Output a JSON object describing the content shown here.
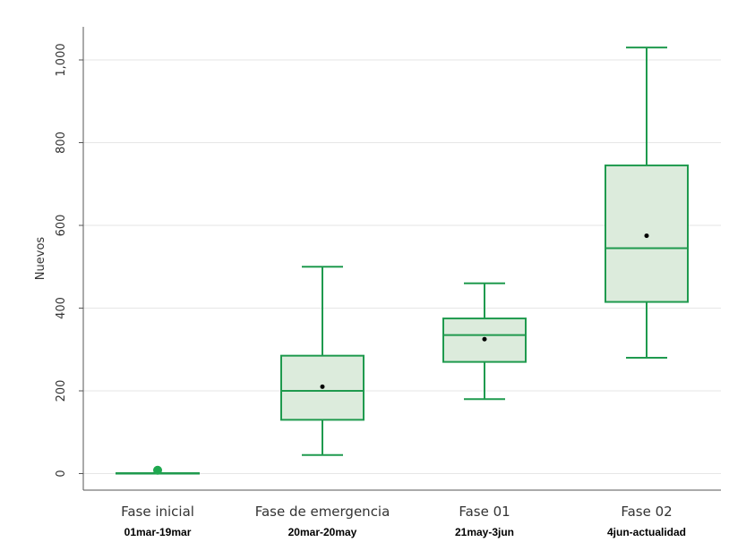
{
  "colors": {
    "box_fill": "#dcebdc",
    "box_stroke": "#1f9a4e",
    "grid": "#e6e6e6",
    "axis": "#555555",
    "mean_marker": "#000000",
    "point": "#1fa84f"
  },
  "chart_data": {
    "type": "box",
    "xlabel": "",
    "ylabel": "Nuevos",
    "ylim": [
      -40,
      1080
    ],
    "yticks": [
      0,
      200,
      400,
      600,
      800,
      1000
    ],
    "ytick_labels": [
      "0",
      "200",
      "400",
      "600",
      "800",
      "1,000"
    ],
    "grid": true,
    "categories": [
      {
        "label": "Fase inicial",
        "sublabel": "01mar-19mar",
        "min": 1,
        "q1": 1,
        "median": 1,
        "q3": 1,
        "max": 1,
        "mean": 8
      },
      {
        "label": "Fase de emergencia",
        "sublabel": "20mar-20may",
        "min": 45,
        "q1": 130,
        "median": 200,
        "q3": 285,
        "max": 500,
        "mean": 210
      },
      {
        "label": "Fase 01",
        "sublabel": "21may-3jun",
        "min": 180,
        "q1": 270,
        "median": 335,
        "q3": 375,
        "max": 460,
        "mean": 325
      },
      {
        "label": "Fase 02",
        "sublabel": "4jun-actualidad",
        "min": 280,
        "q1": 415,
        "median": 545,
        "q3": 745,
        "max": 1030,
        "mean": 575
      }
    ]
  }
}
